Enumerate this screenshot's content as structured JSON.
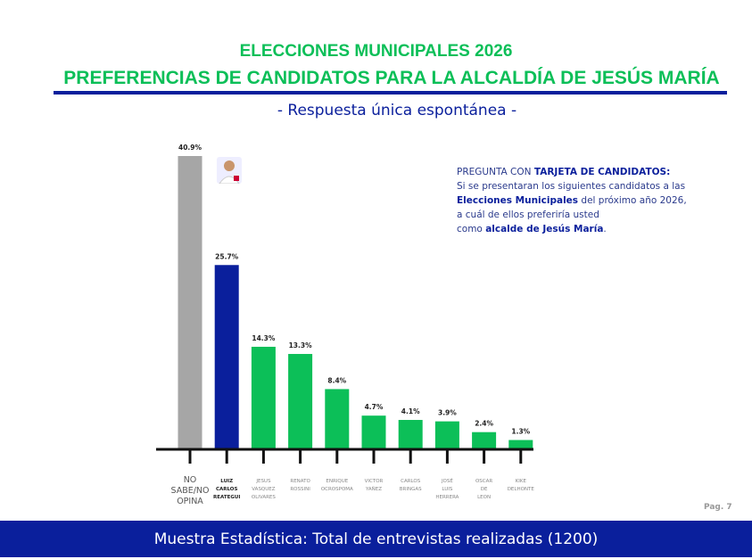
{
  "header": {
    "title1": "ELECCIONES MUNICIPALES 2026",
    "title2": "PREFERENCIAS DE CANDIDATOS PARA LA ALCALDÍA DE JESÚS MARÍA",
    "subtitle": "- Respuesta única espontánea -"
  },
  "question": {
    "p1": "PREGUNTA CON ",
    "p1b": "TARJETA DE CANDIDATOS:",
    "p2": " Si se presentaran los siguientes candidatos a las ",
    "p3b": "Elecciones Municipales",
    "p3": " del próximo año 2026,",
    "p4": "a cuál de ellos preferiría usted",
    "p5": "como ",
    "p5b": "alcalde de Jesús María",
    "p6": "."
  },
  "page": "Pag. 7",
  "footer": "Muestra Estadística: Total de entrevistas realizadas (1200)",
  "chart_data": {
    "type": "bar",
    "ylim": [
      0,
      41
    ],
    "categories": [
      "NO SABE/NO OPINA",
      "LUIZ CARLOS REATEGUI",
      "JESUS VASQUEZ OLIVARES",
      "RENATO ROSSINI",
      "ENRIQUE OCROSPOMA",
      "VICTOR YAÑEZ",
      "CARLOS BRINGAS",
      "JOSÉ LUIS HERRERA",
      "OSCAR DE LEON",
      "KIKE DELHONTE"
    ],
    "values": [
      40.9,
      25.7,
      14.3,
      13.3,
      8.4,
      4.7,
      4.1,
      3.9,
      2.4,
      1.3
    ],
    "labels": [
      "40.9%",
      "25.7%",
      "14.3%",
      "13.3%",
      "8.4%",
      "4.7%",
      "4.1%",
      "3.9%",
      "2.4%",
      "1.3%"
    ],
    "colors": [
      "#a6a6a6",
      "#0a1f9c",
      "#0cbf58",
      "#0cbf58",
      "#0cbf58",
      "#0cbf58",
      "#0cbf58",
      "#0cbf58",
      "#0cbf58",
      "#0cbf58"
    ]
  }
}
